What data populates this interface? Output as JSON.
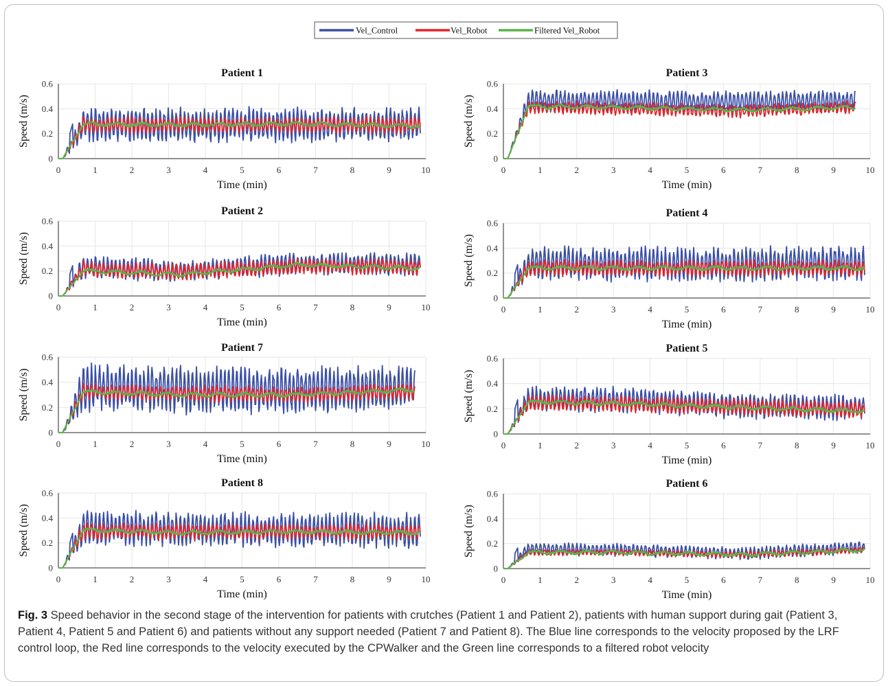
{
  "figure": {
    "caption_label": "Fig. 3",
    "caption_text": " Speed behavior in the second stage of the intervention for patients with crutches (Patient 1 and Patient 2), patients with human support during gait (Patient 3, Patient 4, Patient 5 and Patient 6) and patients without any support needed (Patient 7 and Patient 8). The Blue line corresponds to the velocity proposed by the LRF control loop, the Red line corresponds to the velocity executed by the CPWalker and the Green line corresponds to a filtered robot velocity"
  },
  "legend": {
    "placement": "top-center",
    "entries": [
      {
        "label": "Vel_Control",
        "color": "#3a4fa6"
      },
      {
        "label": "Vel_Robot",
        "color": "#e0262b"
      },
      {
        "label": "Filtered Vel_Robot",
        "color": "#5ab34a"
      }
    ]
  },
  "chart_data": [
    {
      "type": "line",
      "title": "Patient 1",
      "xlabel": "Time (min)",
      "ylabel": "Speed (m/s)",
      "xlim": [
        0,
        10
      ],
      "ylim": [
        0,
        0.6
      ],
      "xticks": [
        "0",
        "1",
        "2",
        "3",
        "4",
        "5",
        "6",
        "7",
        "8",
        "9",
        "10"
      ],
      "yticks": [
        "0",
        "0.2",
        "0.4",
        "0.6"
      ],
      "grid": true,
      "end_time": 9.85,
      "series": [
        {
          "name": "Vel_Control",
          "shape": {
            "base": [
              0.27,
              0.27,
              0.27,
              0.27
            ],
            "amp": 0.11,
            "period": 0.11,
            "spike": 0.57
          }
        },
        {
          "name": "Vel_Robot",
          "shape": {
            "base": [
              0.27,
              0.27,
              0.27,
              0.27
            ],
            "amp": 0.05
          }
        },
        {
          "name": "Filtered Vel_Robot",
          "shape": {
            "base": [
              0.28,
              0.27,
              0.28,
              0.26
            ]
          }
        }
      ]
    },
    {
      "type": "line",
      "title": "Patient 3",
      "xlabel": "Time (min)",
      "ylabel": "Speed (m/s)",
      "xlim": [
        0,
        10
      ],
      "ylim": [
        0,
        0.6
      ],
      "xticks": [
        "0",
        "1",
        "2",
        "3",
        "4",
        "5",
        "6",
        "7",
        "8",
        "9",
        "10"
      ],
      "yticks": [
        "0",
        "0.2",
        "0.4",
        "0.6"
      ],
      "grid": true,
      "end_time": 9.6,
      "series": [
        {
          "name": "Vel_Control",
          "shape": {
            "base": [
              0.47,
              0.46,
              0.45,
              0.46
            ],
            "amp": 0.07,
            "period": 0.11
          }
        },
        {
          "name": "Vel_Robot",
          "shape": {
            "base": [
              0.42,
              0.4,
              0.38,
              0.41
            ],
            "amp": 0.04
          }
        },
        {
          "name": "Filtered Vel_Robot",
          "shape": {
            "base": [
              0.42,
              0.41,
              0.39,
              0.41
            ]
          }
        }
      ]
    },
    {
      "type": "line",
      "title": "Patient 2",
      "xlabel": "Time (min)",
      "ylabel": "Speed (m/s)",
      "xlim": [
        0,
        10
      ],
      "ylim": [
        0,
        0.6
      ],
      "xticks": [
        "0",
        "1",
        "2",
        "3",
        "4",
        "5",
        "6",
        "7",
        "8",
        "9",
        "10"
      ],
      "yticks": [
        "0",
        "0.2",
        "0.4",
        "0.6"
      ],
      "grid": true,
      "end_time": 9.85,
      "series": [
        {
          "name": "Vel_Control",
          "shape": {
            "base": [
              0.24,
              0.2,
              0.26,
              0.25
            ],
            "amp": 0.07,
            "period": 0.11,
            "spike": 0.5
          }
        },
        {
          "name": "Vel_Robot",
          "shape": {
            "base": [
              0.22,
              0.19,
              0.24,
              0.23
            ],
            "amp": 0.05
          }
        },
        {
          "name": "Filtered Vel_Robot",
          "shape": {
            "base": [
              0.21,
              0.17,
              0.25,
              0.22
            ]
          }
        }
      ]
    },
    {
      "type": "line",
      "title": "Patient 4",
      "xlabel": "Time (min)",
      "ylabel": "Speed (m/s)",
      "xlim": [
        0,
        10
      ],
      "ylim": [
        0,
        0.6
      ],
      "xticks": [
        "0",
        "1",
        "2",
        "3",
        "4",
        "5",
        "6",
        "7",
        "8",
        "9",
        "10"
      ],
      "yticks": [
        "0",
        "0.2",
        "0.4",
        "0.6"
      ],
      "grid": true,
      "end_time": 9.85,
      "series": [
        {
          "name": "Vel_Control",
          "shape": {
            "base": [
              0.28,
              0.27,
              0.27,
              0.28
            ],
            "amp": 0.11,
            "period": 0.11,
            "spike": 0.55
          }
        },
        {
          "name": "Vel_Robot",
          "shape": {
            "base": [
              0.24,
              0.24,
              0.24,
              0.24
            ],
            "amp": 0.05
          }
        },
        {
          "name": "Filtered Vel_Robot",
          "shape": {
            "base": [
              0.24,
              0.24,
              0.24,
              0.24
            ]
          }
        }
      ]
    },
    {
      "type": "line",
      "title": "Patient 7",
      "xlabel": "Time (min)",
      "ylabel": "Speed (m/s)",
      "xlim": [
        0,
        10
      ],
      "ylim": [
        0,
        0.6
      ],
      "xticks": [
        "0",
        "1",
        "2",
        "3",
        "4",
        "5",
        "6",
        "7",
        "8",
        "9",
        "10"
      ],
      "yticks": [
        "0",
        "0.2",
        "0.4",
        "0.6"
      ],
      "grid": true,
      "end_time": 9.7,
      "series": [
        {
          "name": "Vel_Control",
          "shape": {
            "base": [
              0.36,
              0.34,
              0.33,
              0.36
            ],
            "amp": 0.15,
            "period": 0.11
          }
        },
        {
          "name": "Vel_Robot",
          "shape": {
            "base": [
              0.33,
              0.31,
              0.3,
              0.33
            ],
            "amp": 0.05
          }
        },
        {
          "name": "Filtered Vel_Robot",
          "shape": {
            "base": [
              0.33,
              0.3,
              0.3,
              0.34
            ]
          }
        }
      ]
    },
    {
      "type": "line",
      "title": "Patient 5",
      "xlabel": "Time (min)",
      "ylabel": "Speed (m/s)",
      "xlim": [
        0,
        10
      ],
      "ylim": [
        0,
        0.6
      ],
      "xticks": [
        "0",
        "1",
        "2",
        "3",
        "4",
        "5",
        "6",
        "7",
        "8",
        "9",
        "10"
      ],
      "yticks": [
        "0",
        "0.2",
        "0.4",
        "0.6"
      ],
      "grid": true,
      "end_time": 9.85,
      "series": [
        {
          "name": "Vel_Control",
          "shape": {
            "base": [
              0.28,
              0.27,
              0.22,
              0.21
            ],
            "amp": 0.08,
            "period": 0.11,
            "spike": 0.56
          }
        },
        {
          "name": "Vel_Robot",
          "shape": {
            "base": [
              0.25,
              0.24,
              0.21,
              0.19
            ],
            "amp": 0.05
          }
        },
        {
          "name": "Filtered Vel_Robot",
          "shape": {
            "base": [
              0.26,
              0.24,
              0.21,
              0.18
            ]
          }
        }
      ]
    },
    {
      "type": "line",
      "title": "Patient 8",
      "xlabel": "Time (min)",
      "ylabel": "Speed (m/s)",
      "xlim": [
        0,
        10
      ],
      "ylim": [
        0,
        0.6
      ],
      "xticks": [
        "0",
        "1",
        "2",
        "3",
        "4",
        "5",
        "6",
        "7",
        "8",
        "9",
        "10"
      ],
      "yticks": [
        "0",
        "0.2",
        "0.4",
        "0.6"
      ],
      "grid": true,
      "end_time": 9.85,
      "series": [
        {
          "name": "Vel_Control",
          "shape": {
            "base": [
              0.32,
              0.31,
              0.3,
              0.3
            ],
            "amp": 0.11,
            "period": 0.11,
            "spike": 0.57
          }
        },
        {
          "name": "Vel_Robot",
          "shape": {
            "base": [
              0.3,
              0.29,
              0.29,
              0.29
            ],
            "amp": 0.05
          }
        },
        {
          "name": "Filtered Vel_Robot",
          "shape": {
            "base": [
              0.31,
              0.28,
              0.29,
              0.28
            ]
          }
        }
      ]
    },
    {
      "type": "line",
      "title": "Patient 6",
      "xlabel": "Time (min)",
      "ylabel": "Speed (m/s)",
      "xlim": [
        0,
        10
      ],
      "ylim": [
        0,
        0.6
      ],
      "xticks": [
        "0",
        "1",
        "2",
        "3",
        "4",
        "5",
        "6",
        "7",
        "8",
        "9",
        "10"
      ],
      "yticks": [
        "0",
        "0.2",
        "0.4",
        "0.6"
      ],
      "grid": true,
      "end_time": 9.85,
      "series": [
        {
          "name": "Vel_Control",
          "shape": {
            "base": [
              0.16,
              0.15,
              0.12,
              0.17
            ],
            "amp": 0.04,
            "period": 0.11,
            "spike": 0.34
          }
        },
        {
          "name": "Vel_Robot",
          "shape": {
            "base": [
              0.13,
              0.13,
              0.11,
              0.15
            ],
            "amp": 0.02
          }
        },
        {
          "name": "Filtered Vel_Robot",
          "shape": {
            "base": [
              0.13,
              0.13,
              0.11,
              0.15
            ]
          }
        }
      ]
    }
  ]
}
